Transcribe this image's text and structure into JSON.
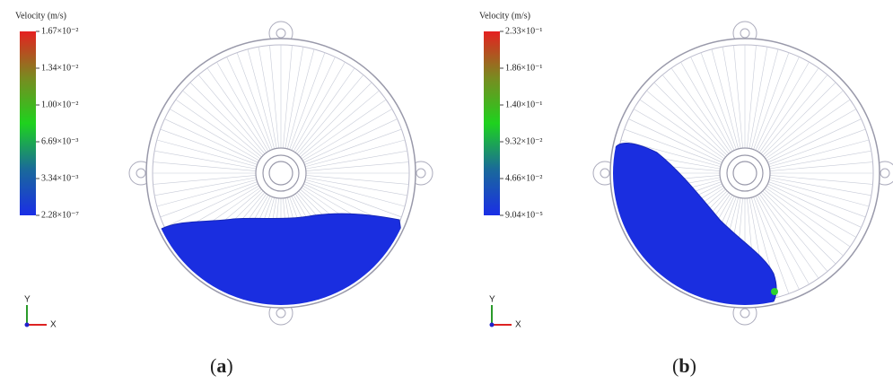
{
  "panels": [
    {
      "colorbar": {
        "title": "Velocity (m/s)",
        "labels": [
          "1.67×10⁻²",
          "1.34×10⁻²",
          "1.00×10⁻²",
          "6.69×10⁻³",
          "3.34×10⁻³",
          "2.28×10⁻⁷"
        ]
      },
      "axes": {
        "y": "Y",
        "x": "X"
      },
      "caption": {
        "open": "(",
        "label": "a",
        "close": ")"
      }
    },
    {
      "colorbar": {
        "title": "Velocity (m/s)",
        "labels": [
          "2.33×10⁻¹",
          "1.86×10⁻¹",
          "1.40×10⁻¹",
          "9.32×10⁻²",
          "4.66×10⁻²",
          "9.04×10⁻⁵"
        ]
      },
      "axes": {
        "y": "Y",
        "x": "X"
      },
      "caption": {
        "open": "(",
        "label": "b",
        "close": ")"
      }
    }
  ]
}
